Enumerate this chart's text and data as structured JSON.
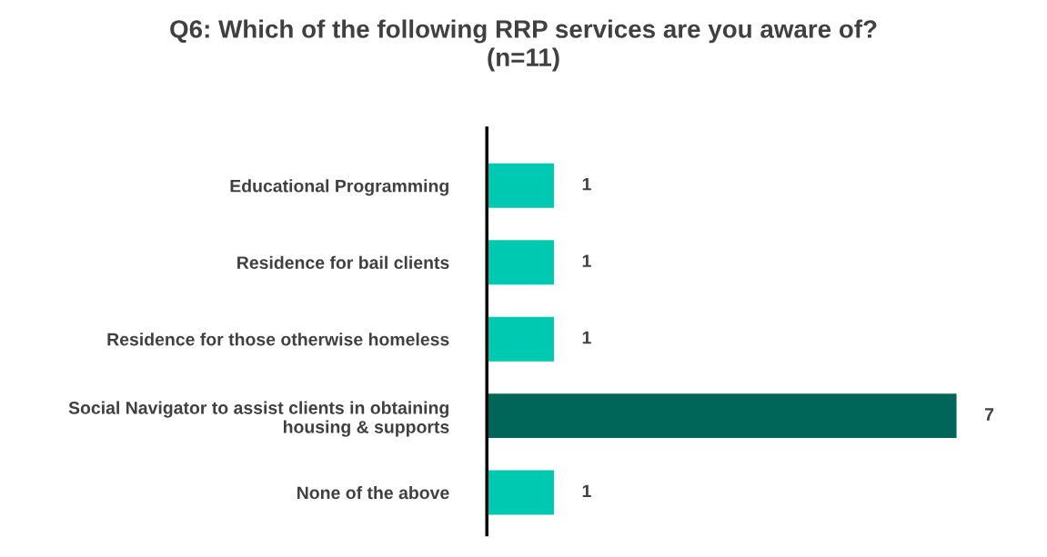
{
  "chart_data": {
    "type": "bar",
    "orientation": "horizontal",
    "title": "Q6: Which of the following RRP services are you aware of?\n(n=11)",
    "categories": [
      "Educational Programming",
      "Residence for bail clients",
      "Residence for those otherwise homeless",
      "Social Navigator to assist clients in obtaining\nhousing & supports",
      "None of the above"
    ],
    "values": [
      1,
      1,
      1,
      7,
      1
    ],
    "colors": [
      "#00c9b1",
      "#00c9b1",
      "#00c9b1",
      "#00665a",
      "#00c9b1"
    ],
    "data_labels": true,
    "grid": false,
    "legend": false,
    "tick_labels": "y"
  }
}
